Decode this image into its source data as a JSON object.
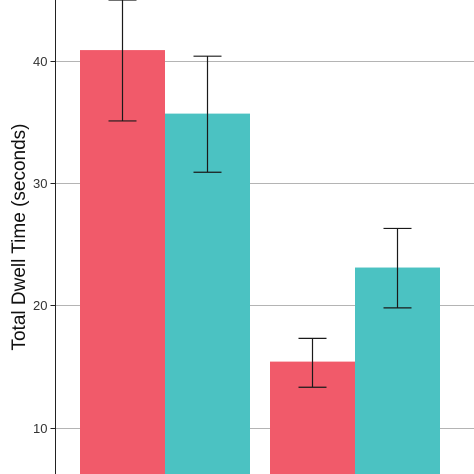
{
  "chart_data": {
    "type": "bar",
    "title": "",
    "xlabel": "",
    "ylabel": "Total Dwell Time (seconds)",
    "ylim": [
      6.2,
      45.0
    ],
    "yticks": [
      10,
      20,
      30,
      40
    ],
    "grid": "horizontal",
    "legend": "none",
    "groups": 2,
    "series": [
      {
        "color": "#f15a6a",
        "values": [
          40.9,
          15.4
        ],
        "error_low": [
          35.1,
          13.3
        ],
        "error_high": [
          45.0,
          17.3
        ]
      },
      {
        "color": "#4bc2c2",
        "values": [
          35.7,
          23.1
        ],
        "error_low": [
          30.9,
          19.8
        ],
        "error_high": [
          40.4,
          26.3
        ]
      }
    ]
  }
}
